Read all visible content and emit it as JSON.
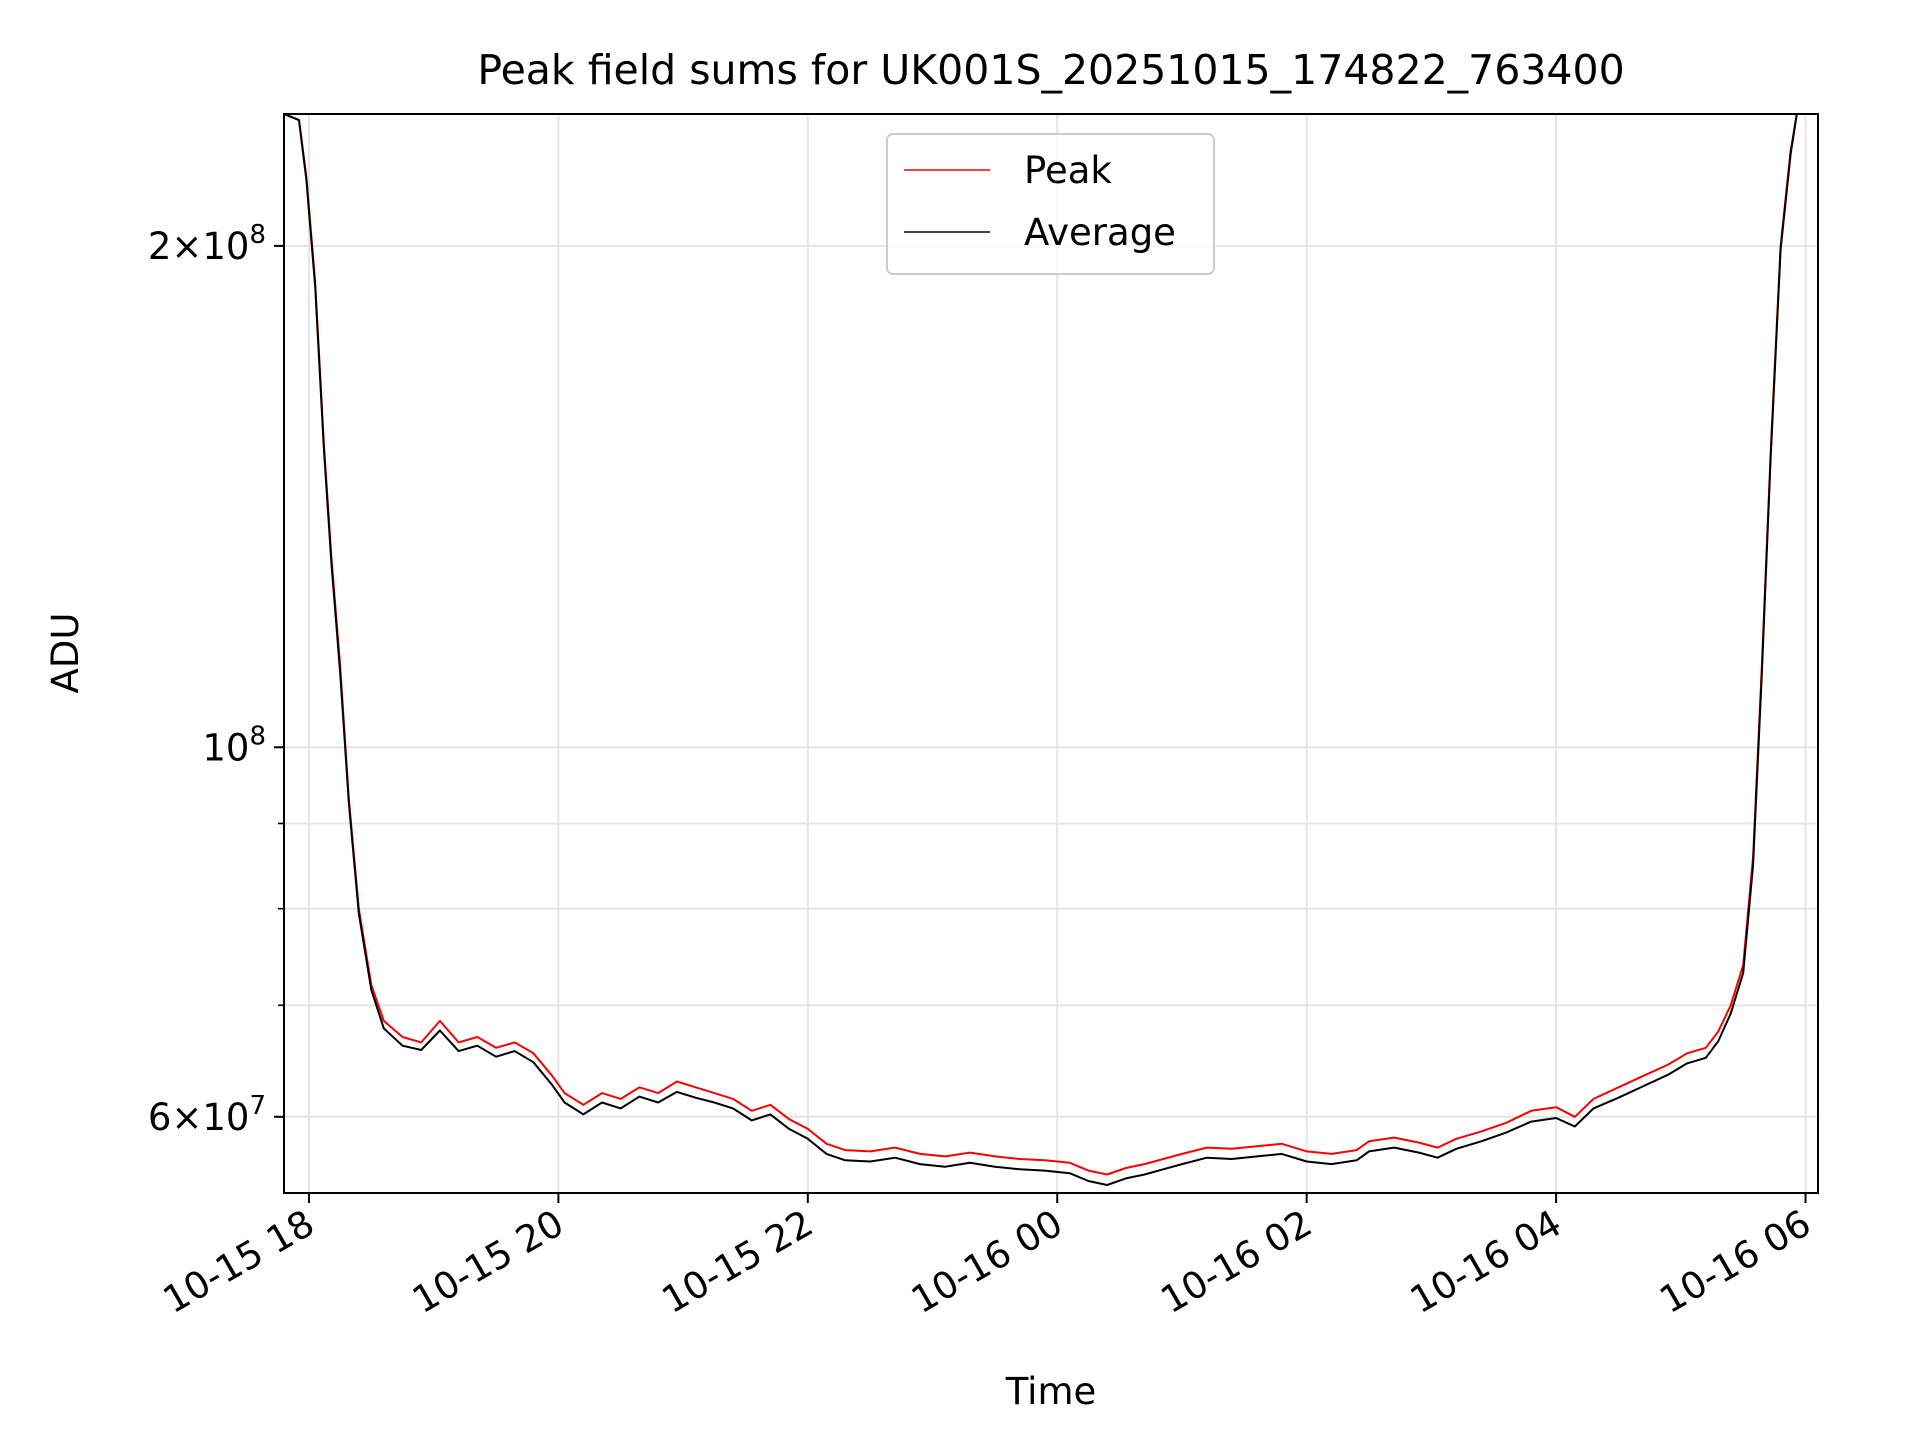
{
  "chart_data": {
    "type": "line",
    "title": "Peak field sums for UK001S_20251015_174822_763400",
    "xlabel": "Time",
    "ylabel": "ADU",
    "yscale": "log",
    "x_unit": "hours since 2025-10-15 00:00",
    "xlim": [
      17.8,
      30.1
    ],
    "ylim": [
      54000000,
      240000000
    ],
    "grid": true,
    "legend_position": "upper center",
    "x_ticks": [
      {
        "value": 18,
        "label": "10-15 18"
      },
      {
        "value": 20,
        "label": "10-15 20"
      },
      {
        "value": 22,
        "label": "10-15 22"
      },
      {
        "value": 24,
        "label": "10-16 00"
      },
      {
        "value": 26,
        "label": "10-16 02"
      },
      {
        "value": 28,
        "label": "10-16 04"
      },
      {
        "value": 30,
        "label": "10-16 06"
      }
    ],
    "y_major_ticks": [
      {
        "value": 60000000,
        "mantissa": "6",
        "exponent": "7"
      },
      {
        "value": 100000000,
        "mantissa": "",
        "exponent": "8"
      },
      {
        "value": 200000000,
        "mantissa": "2",
        "exponent": "8"
      }
    ],
    "y_minor_ticks": [
      60000000,
      70000000,
      80000000,
      90000000
    ],
    "series": [
      {
        "name": "Peak",
        "color": "#ff0000",
        "x": [
          17.8,
          17.92,
          17.98,
          18.05,
          18.12,
          18.18,
          18.25,
          18.32,
          18.4,
          18.5,
          18.6,
          18.75,
          18.9,
          19.05,
          19.2,
          19.35,
          19.5,
          19.65,
          19.8,
          19.95,
          20.05,
          20.2,
          20.35,
          20.5,
          20.65,
          20.8,
          20.95,
          21.1,
          21.25,
          21.4,
          21.55,
          21.7,
          21.85,
          22.0,
          22.15,
          22.3,
          22.5,
          22.7,
          22.9,
          23.1,
          23.3,
          23.5,
          23.7,
          23.9,
          24.1,
          24.25,
          24.4,
          24.55,
          24.7,
          24.85,
          25.0,
          25.2,
          25.4,
          25.6,
          25.8,
          26.0,
          26.2,
          26.4,
          26.5,
          26.7,
          26.9,
          27.05,
          27.2,
          27.4,
          27.6,
          27.8,
          28.0,
          28.15,
          28.3,
          28.5,
          28.7,
          28.9,
          29.05,
          29.2,
          29.3,
          29.4,
          29.5,
          29.58,
          29.65,
          29.72,
          29.8,
          29.88,
          29.93
        ],
        "values": [
          240000000,
          238000000,
          220000000,
          190000000,
          152000000,
          130000000,
          112000000,
          93000000,
          80000000,
          72000000,
          68500000,
          67000000,
          66500000,
          68500000,
          66500000,
          67000000,
          66000000,
          66500000,
          65500000,
          63500000,
          62000000,
          61000000,
          62000000,
          61500000,
          62500000,
          62000000,
          63000000,
          62500000,
          62000000,
          61500000,
          60500000,
          61000000,
          59800000,
          59000000,
          57800000,
          57300000,
          57200000,
          57500000,
          57000000,
          56800000,
          57100000,
          56800000,
          56600000,
          56500000,
          56300000,
          55700000,
          55400000,
          55900000,
          56200000,
          56600000,
          57000000,
          57500000,
          57400000,
          57600000,
          57800000,
          57200000,
          57000000,
          57300000,
          58000000,
          58300000,
          57900000,
          57500000,
          58200000,
          58800000,
          59500000,
          60500000,
          60800000,
          60000000,
          61500000,
          62500000,
          63500000,
          64500000,
          65500000,
          66000000,
          67500000,
          70000000,
          74000000,
          86000000,
          112000000,
          150000000,
          200000000,
          228000000,
          240000000
        ]
      },
      {
        "name": "Average",
        "color": "#000000",
        "x": [
          17.8,
          17.92,
          17.98,
          18.05,
          18.12,
          18.18,
          18.25,
          18.32,
          18.4,
          18.5,
          18.6,
          18.75,
          18.9,
          19.05,
          19.2,
          19.35,
          19.5,
          19.65,
          19.8,
          19.95,
          20.05,
          20.2,
          20.35,
          20.5,
          20.65,
          20.8,
          20.95,
          21.1,
          21.25,
          21.4,
          21.55,
          21.7,
          21.85,
          22.0,
          22.15,
          22.3,
          22.5,
          22.7,
          22.9,
          23.1,
          23.3,
          23.5,
          23.7,
          23.9,
          24.1,
          24.25,
          24.4,
          24.55,
          24.7,
          24.85,
          25.0,
          25.2,
          25.4,
          25.6,
          25.8,
          26.0,
          26.2,
          26.4,
          26.5,
          26.7,
          26.9,
          27.05,
          27.2,
          27.4,
          27.6,
          27.8,
          28.0,
          28.15,
          28.3,
          28.5,
          28.7,
          28.9,
          29.05,
          29.2,
          29.3,
          29.4,
          29.5,
          29.58,
          29.65,
          29.72,
          29.8,
          29.88,
          29.93
        ],
        "values": [
          240000000,
          238000000,
          219000000,
          189000000,
          151000000,
          129000000,
          111000000,
          92500000,
          79500000,
          71500000,
          67800000,
          66200000,
          65800000,
          67600000,
          65700000,
          66200000,
          65200000,
          65700000,
          64700000,
          62700000,
          61200000,
          60200000,
          61200000,
          60700000,
          61700000,
          61200000,
          62100000,
          61600000,
          61200000,
          60700000,
          59700000,
          60200000,
          59000000,
          58200000,
          57000000,
          56500000,
          56400000,
          56700000,
          56200000,
          56000000,
          56300000,
          56000000,
          55800000,
          55700000,
          55500000,
          54900000,
          54600000,
          55100000,
          55400000,
          55800000,
          56200000,
          56700000,
          56600000,
          56800000,
          57000000,
          56400000,
          56200000,
          56500000,
          57200000,
          57500000,
          57100000,
          56700000,
          57400000,
          58000000,
          58700000,
          59600000,
          59900000,
          59200000,
          60700000,
          61600000,
          62600000,
          63600000,
          64600000,
          65100000,
          66600000,
          69200000,
          73200000,
          85000000,
          111000000,
          149000000,
          199000000,
          227000000,
          240000000
        ]
      }
    ]
  }
}
